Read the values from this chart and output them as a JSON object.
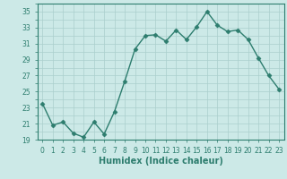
{
  "x": [
    0,
    1,
    2,
    3,
    4,
    5,
    6,
    7,
    8,
    9,
    10,
    11,
    12,
    13,
    14,
    15,
    16,
    17,
    18,
    19,
    20,
    21,
    22,
    23
  ],
  "y": [
    23.5,
    20.8,
    21.2,
    19.8,
    19.3,
    21.2,
    19.7,
    22.5,
    26.3,
    30.3,
    32.0,
    32.1,
    31.3,
    32.7,
    31.5,
    33.1,
    35.0,
    33.3,
    32.5,
    32.7,
    31.5,
    29.2,
    27.0,
    25.3
  ],
  "line_color": "#2d7d6e",
  "marker": "D",
  "marker_size": 2.5,
  "bg_color": "#cce9e7",
  "grid_color": "#aacfcc",
  "xlabel": "Humidex (Indice chaleur)",
  "xlim": [
    -0.5,
    23.5
  ],
  "ylim": [
    19,
    36
  ],
  "yticks": [
    19,
    21,
    23,
    25,
    27,
    29,
    31,
    33,
    35
  ],
  "xticks": [
    0,
    1,
    2,
    3,
    4,
    5,
    6,
    7,
    8,
    9,
    10,
    11,
    12,
    13,
    14,
    15,
    16,
    17,
    18,
    19,
    20,
    21,
    22,
    23
  ],
  "xtick_labels": [
    "0",
    "1",
    "2",
    "3",
    "4",
    "5",
    "6",
    "7",
    "8",
    "9",
    "10",
    "11",
    "12",
    "13",
    "14",
    "15",
    "16",
    "17",
    "18",
    "19",
    "20",
    "21",
    "22",
    "23"
  ],
  "font_color": "#2d7d6e",
  "tick_fontsize": 5.5,
  "xlabel_fontsize": 7,
  "linewidth": 1.0
}
